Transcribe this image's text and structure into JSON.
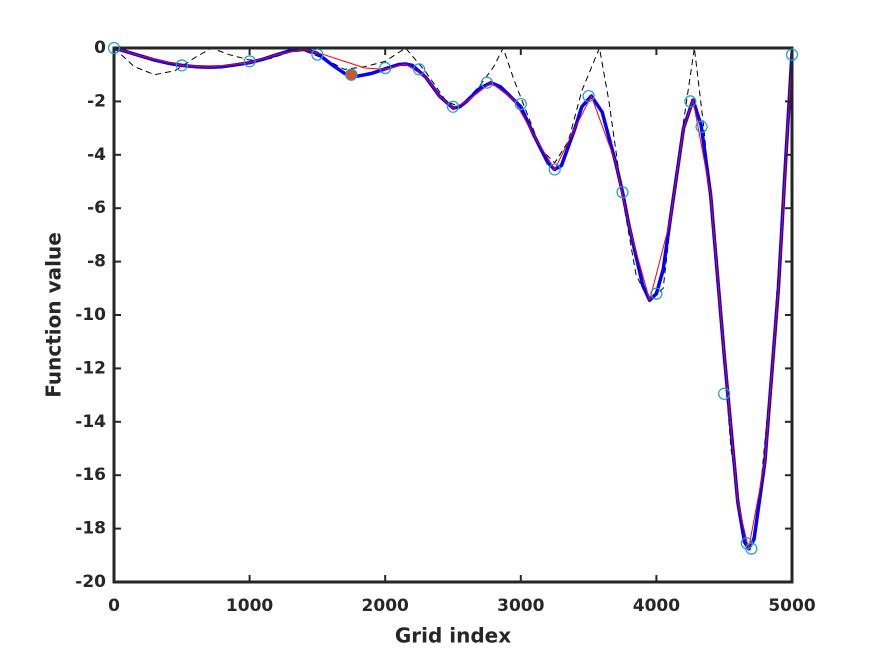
{
  "chart_data": {
    "type": "line",
    "xlabel": "Grid index",
    "ylabel": "Function value",
    "xlim": [
      0,
      5000
    ],
    "xticks": [
      0,
      1000,
      2000,
      3000,
      4000,
      5000
    ],
    "ylim": [
      -20,
      0
    ],
    "yticks": [
      -20,
      -18,
      -16,
      -14,
      -12,
      -10,
      -8,
      -6,
      -4,
      -2,
      0
    ],
    "grid": false,
    "series": [
      {
        "color": "#000000",
        "line_style": "dashed",
        "marker": "none",
        "x": [
          0,
          150,
          300,
          450,
          600,
          720,
          850,
          1000,
          1150,
          1300,
          1400,
          1550,
          1700,
          1850,
          2000,
          2150,
          2300,
          2450,
          2550,
          2700,
          2800,
          2870,
          2950,
          3050,
          3150,
          3250,
          3350,
          3450,
          3580,
          3650,
          3750,
          3850,
          3950,
          4050,
          4150,
          4280,
          4350,
          4450,
          4550,
          4650,
          4690,
          4750,
          4850,
          4950,
          5000
        ],
        "values": [
          0,
          -0.7,
          -1.0,
          -0.85,
          -0.35,
          0,
          -0.25,
          -0.45,
          -0.4,
          -0.15,
          -0.1,
          -0.4,
          -0.8,
          -0.7,
          -0.5,
          0,
          -0.9,
          -2.0,
          -2.2,
          -1.4,
          -0.7,
          0,
          -1.2,
          -2.5,
          -3.8,
          -4.3,
          -3.5,
          -1.6,
          0,
          -2.0,
          -5.6,
          -8.5,
          -9.5,
          -9.0,
          -4.5,
          0,
          -3.0,
          -8.5,
          -15,
          -18.4,
          -18.8,
          -17.5,
          -12,
          -4.5,
          -0.2
        ]
      },
      {
        "color": "#0000ff",
        "line_style": "solid",
        "line_width": 3.5,
        "marker": "none",
        "x": [
          0,
          100,
          200,
          300,
          400,
          500,
          600,
          700,
          800,
          900,
          1000,
          1100,
          1200,
          1300,
          1400,
          1500,
          1600,
          1700,
          1750,
          1800,
          1900,
          2000,
          2100,
          2150,
          2200,
          2300,
          2400,
          2500,
          2550,
          2600,
          2700,
          2780,
          2850,
          2950,
          3000,
          3100,
          3200,
          3250,
          3300,
          3400,
          3450,
          3520,
          3600,
          3700,
          3750,
          3800,
          3900,
          3950,
          4000,
          4050,
          4100,
          4200,
          4270,
          4330,
          4400,
          4500,
          4600,
          4650,
          4680,
          4720,
          4800,
          4900,
          4950,
          5000
        ],
        "values": [
          0,
          -0.15,
          -0.3,
          -0.45,
          -0.57,
          -0.65,
          -0.7,
          -0.72,
          -0.7,
          -0.63,
          -0.55,
          -0.42,
          -0.25,
          -0.1,
          -0.05,
          -0.2,
          -0.6,
          -0.95,
          -1.05,
          -1.05,
          -0.95,
          -0.78,
          -0.62,
          -0.6,
          -0.65,
          -1.1,
          -1.8,
          -2.25,
          -2.2,
          -2.0,
          -1.5,
          -1.3,
          -1.45,
          -1.95,
          -2.2,
          -3.3,
          -4.3,
          -4.55,
          -4.4,
          -3.0,
          -2.2,
          -1.8,
          -2.4,
          -4.3,
          -5.4,
          -6.7,
          -8.9,
          -9.45,
          -9.2,
          -8.3,
          -6.5,
          -3.0,
          -1.95,
          -2.9,
          -5.5,
          -11.5,
          -17.0,
          -18.5,
          -18.75,
          -18.4,
          -15.5,
          -9,
          -4.5,
          -0.2
        ]
      },
      {
        "color": "#ff0000",
        "line_style": "solid",
        "line_width": 1,
        "marker": "none",
        "x": [
          0,
          200,
          500,
          700,
          1000,
          1200,
          1400,
          1550,
          1700,
          1850,
          2000,
          2150,
          2300,
          2400,
          2500,
          2600,
          2780,
          2950,
          3100,
          3250,
          3400,
          3520,
          3700,
          3800,
          3950,
          4100,
          4200,
          4270,
          4400,
          4500,
          4600,
          4680,
          4800,
          4900,
          5000
        ],
        "values": [
          0,
          -0.3,
          -0.65,
          -0.72,
          -0.55,
          -0.25,
          -0.05,
          -0.25,
          -0.5,
          -0.75,
          -0.8,
          -0.6,
          -1.1,
          -1.8,
          -2.25,
          -2.0,
          -1.3,
          -1.95,
          -3.3,
          -4.55,
          -3.0,
          -1.8,
          -4.3,
          -6.7,
          -9.45,
          -6.5,
          -3.0,
          -1.95,
          -5.5,
          -11.5,
          -17.0,
          -18.75,
          -15.5,
          -9,
          -0.2
        ]
      },
      {
        "color": "#1f9ad6",
        "line_style": "none",
        "marker": "circle",
        "x": [
          0,
          500,
          1000,
          1500,
          1750,
          2000,
          2250,
          2500,
          2750,
          3000,
          3250,
          3500,
          3750,
          4000,
          4250,
          4333,
          4500,
          4667,
          4700,
          5000
        ],
        "values": [
          0,
          -0.65,
          -0.5,
          -0.25,
          -1.0,
          -0.75,
          -0.8,
          -2.2,
          -1.3,
          -2.1,
          -4.55,
          -1.8,
          -5.4,
          -9.2,
          -2.0,
          -2.95,
          -12.95,
          -18.55,
          -18.75,
          -0.25
        ]
      },
      {
        "color": "#1f9ad6",
        "marker_fill": "#d95319",
        "line_style": "none",
        "marker": "circle",
        "x": [
          1750
        ],
        "values": [
          -1.0
        ]
      }
    ]
  }
}
